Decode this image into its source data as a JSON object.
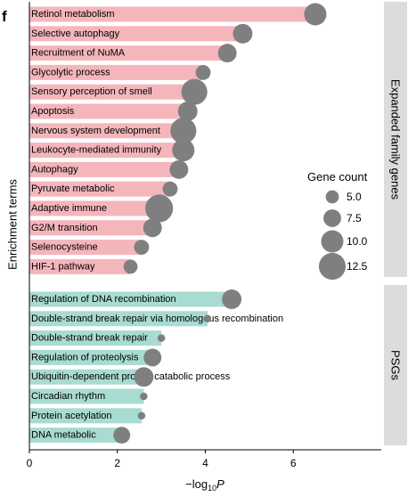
{
  "chart_data": {
    "type": "bar",
    "panel_label": "f",
    "xlabel_main": "−log",
    "xlabel_sub": "10",
    "xlabel_var": "P",
    "ylabel": "Enrichment terms",
    "xlim": [
      0,
      8
    ],
    "xticks": [
      0,
      2,
      4,
      6
    ],
    "grid": false,
    "groups": [
      {
        "name": "Expanded family genes",
        "color": "#f4b6bb",
        "categories": [
          "Retinol metabolism",
          "Selective autophagy",
          "Recruitment of NuMA",
          "Glycolytic process",
          "Sensory perception of smell",
          "Apoptosis",
          "Nervous system development",
          "Leukocyte-mediated immunity",
          "Autophagy",
          "Pyruvate metabolic",
          "Adaptive immune",
          "G2/M transition",
          "Selenocysteine",
          "HIF-1 pathway"
        ],
        "values": [
          6.5,
          4.85,
          4.5,
          3.95,
          3.75,
          3.6,
          3.5,
          3.5,
          3.4,
          3.2,
          2.95,
          2.8,
          2.55,
          2.3
        ],
        "gene_count": [
          10,
          8.5,
          8,
          6,
          12,
          8.5,
          12,
          10,
          8,
          6,
          13,
          8,
          6,
          5.5
        ]
      },
      {
        "name": "PSGs",
        "color": "#a8dbd2",
        "categories": [
          "Regulation of DNA recombination",
          "Double-strand break repair via homologous recombination",
          "Double-strand break repair",
          "Regulation of proteolysis",
          "Ubiquitin-dependent protein catabolic process",
          "Circadian rhythm",
          "Protein acetylation",
          "DNA metabolic"
        ],
        "values": [
          4.6,
          4.05,
          3.0,
          2.8,
          2.6,
          2.6,
          2.55,
          2.1
        ],
        "gene_count": [
          8.5,
          2,
          2,
          7.5,
          8.5,
          2,
          2,
          7
        ]
      }
    ],
    "legend": {
      "title": "Gene count",
      "position": "right",
      "values": [
        5.0,
        7.5,
        10.0,
        12.5
      ],
      "labels": [
        "5.0",
        "7.5",
        "10.0",
        "12.5"
      ]
    },
    "colors": {
      "point": "#7f7f7f",
      "strip": "#dcdcdc",
      "axis": "#000000"
    }
  }
}
